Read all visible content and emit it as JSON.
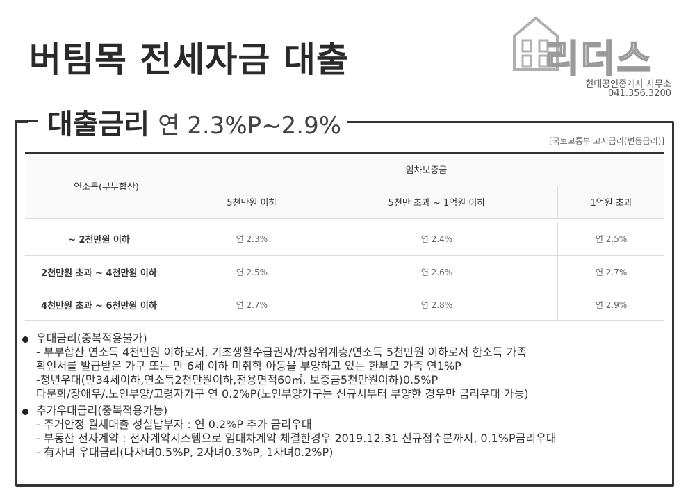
{
  "title": "버팀목 전세자금 대출",
  "logo": {
    "name": "리더스",
    "subtitle": "현대공인중개사 사무소",
    "phone": "041.356.3200"
  },
  "rate": {
    "label": "대출금리",
    "value": "연 2.3%P~2.9%"
  },
  "source_note": "[국토교통부 고시금리(변동금리)]",
  "table": {
    "income_header": "연소득(부부합산)",
    "deposit_header": "임차보증금",
    "columns": [
      "5천만원 이하",
      "5천만 초과 ~ 1억원 이하",
      "1억원 초과"
    ],
    "rows": [
      {
        "income": "~ 2천만원 이하",
        "rates": [
          "연 2.3%",
          "연 2.4%",
          "연 2.5%"
        ]
      },
      {
        "income": "2천만원 초과  ~ 4천만원 이하",
        "rates": [
          "연 2.5%",
          "연 2.6%",
          "연 2.7%"
        ]
      },
      {
        "income": "4천만원 초과  ~ 6천만원 이하",
        "rates": [
          "연 2.7%",
          "연 2.8%",
          "연 2.9%"
        ]
      }
    ]
  },
  "notes": [
    {
      "heading": "우대금리(중복적용불가)",
      "lines": [
        " - 부부합산 연소득 4천만원 이하로서, 기초생활수급권자/차상위계층/연소득 5천만원 이하로서 한소득 가족",
        "확인서를 발급받은 가구 또는 만 6세 이하 미취학 아동을 부양하고 있는 한부모 가족 연1%P",
        "-청년우대(만34세이하,연소득2천만원이하,전용면적60㎡, 보증금5천만원이하)0.5%P",
        "다문화/장애우/.노인부양/고령자가구 연 0.2%P(노인부양가구는 신규시부터 부양한 경우만 금리우대 가능)"
      ]
    },
    {
      "heading": "추가우대금리(중복적용가능)",
      "lines": [
        " - 주거안정 월세대출 성실납부자 : 연 0.2%P 추가 금리우대",
        " - 부동산 전자계약 : 전자계약시스템으로 임대차계약 체결한경우 2019.12.31 신규접수분까지, 0.1%P금리우대",
        " - 有자녀 우대금리(다자녀0.5%P, 2자녀0.3%P, 1자녀0.2%P)"
      ]
    }
  ]
}
